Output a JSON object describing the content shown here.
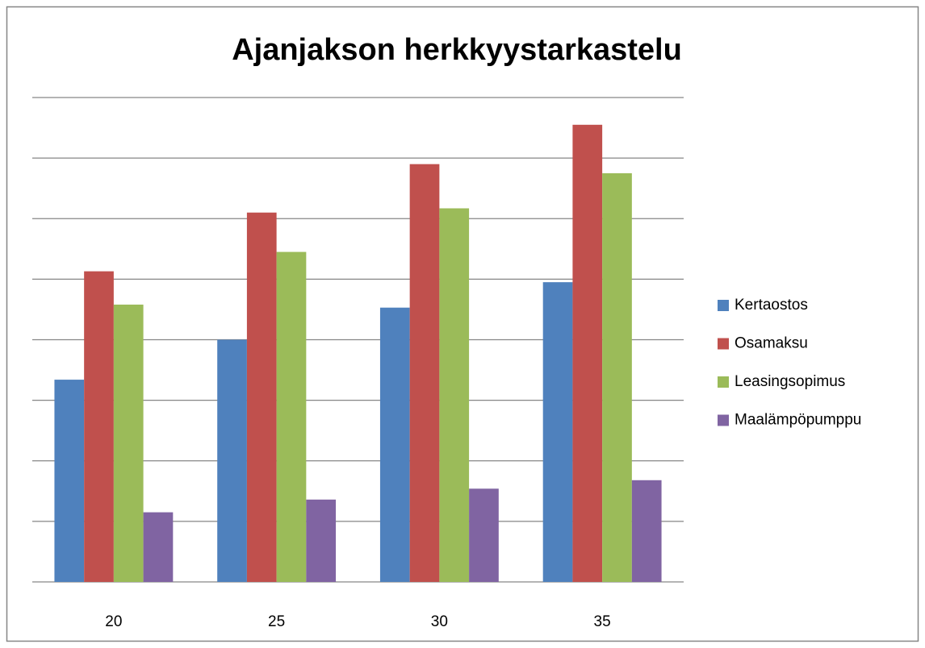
{
  "chart_data": {
    "type": "bar",
    "title": "Ajanjakson herkkyystarkastelu",
    "categories": [
      "20",
      "25",
      "30",
      "35"
    ],
    "series": [
      {
        "name": "Kertaostos",
        "color": "#4f81bd",
        "values": [
          3.34,
          4.0,
          4.53,
          4.95
        ]
      },
      {
        "name": "Osamaksu",
        "color": "#c0504d",
        "values": [
          5.13,
          6.1,
          6.9,
          7.55
        ]
      },
      {
        "name": "Leasingsopimus",
        "color": "#9bbb59",
        "values": [
          4.58,
          5.45,
          6.17,
          6.75
        ]
      },
      {
        "name": "Maalämpöpumppu",
        "color": "#8064a2",
        "values": [
          1.15,
          1.36,
          1.54,
          1.68
        ]
      }
    ],
    "ylim": [
      0,
      8
    ],
    "yticks": [
      0,
      1,
      2,
      3,
      4,
      5,
      6,
      7,
      8
    ],
    "grid": true,
    "legend": "right"
  }
}
